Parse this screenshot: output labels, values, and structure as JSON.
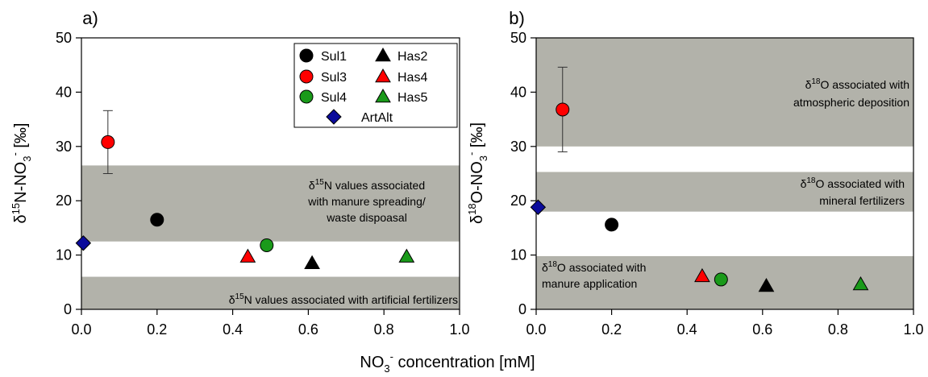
{
  "figure": {
    "shared_xlabel_main": "NO",
    "shared_xlabel_sub": "3",
    "shared_xlabel_sup": "-",
    "shared_xlabel_rest": " concentration [mM]"
  },
  "chart_data": [
    {
      "type": "scatter",
      "panel_label": "a)",
      "ylabel": {
        "delta": "δ",
        "sup1": "15",
        "mid": "N-NO",
        "sub": "3",
        "sup2": "-",
        "unit": " [‰]"
      },
      "xlim": [
        0,
        1.0
      ],
      "ylim": [
        0,
        50
      ],
      "xticks": [
        "0.0",
        "0.2",
        "0.4",
        "0.6",
        "0.8",
        "1.0"
      ],
      "yticks": [
        "0",
        "10",
        "20",
        "30",
        "40",
        "50"
      ],
      "bands": [
        {
          "y0": 12.5,
          "y1": 26.5,
          "label_lines": [
            {
              "delta": "δ",
              "sup": "15",
              "rest": "N values associated"
            },
            {
              "rest": "with manure spreading/"
            },
            {
              "rest": "waste dispoasal"
            }
          ]
        },
        {
          "y0": 0,
          "y1": 6,
          "label_lines": [
            {
              "delta": "δ",
              "sup": "15",
              "rest": "N values associated with artificial fertilizers"
            }
          ]
        }
      ],
      "series": [
        {
          "name": "Sul1",
          "marker": "circle",
          "color": "#000000",
          "points": [
            [
              0.2,
              16.5
            ]
          ]
        },
        {
          "name": "Sul3",
          "marker": "circle",
          "color": "#ff0000",
          "points": [
            [
              0.07,
              30.8
            ]
          ],
          "error": [
            [
              25.0,
              36.6
            ]
          ]
        },
        {
          "name": "Sul4",
          "marker": "circle",
          "color": "#1a9a1a",
          "points": [
            [
              0.49,
              11.8
            ]
          ]
        },
        {
          "name": "Has2",
          "marker": "triangle",
          "color": "#000000",
          "points": [
            [
              0.61,
              8.5
            ]
          ]
        },
        {
          "name": "Has4",
          "marker": "triangle",
          "color": "#ff0000",
          "points": [
            [
              0.44,
              9.7
            ]
          ]
        },
        {
          "name": "Has5",
          "marker": "triangle",
          "color": "#1a9a1a",
          "points": [
            [
              0.86,
              9.7
            ]
          ]
        },
        {
          "name": "ArtAlt",
          "marker": "diamond",
          "color": "#0b0b9b",
          "points": [
            [
              0.005,
              12.2
            ]
          ]
        }
      ],
      "legend": {
        "position": "top-right",
        "rows": [
          [
            "Sul1",
            "Has2"
          ],
          [
            "Sul3",
            "Has4"
          ],
          [
            "Sul4",
            "Has5"
          ],
          [
            "ArtAlt"
          ]
        ]
      }
    },
    {
      "type": "scatter",
      "panel_label": "b)",
      "ylabel": {
        "delta": "δ",
        "sup1": "18",
        "mid": "O-NO",
        "sub": "3",
        "sup2": "-",
        "unit": " [‰]"
      },
      "xlim": [
        0,
        1.0
      ],
      "ylim": [
        0,
        50
      ],
      "xticks": [
        "0.0",
        "0.2",
        "0.4",
        "0.6",
        "0.8",
        "1.0"
      ],
      "yticks": [
        "0",
        "10",
        "20",
        "30",
        "40",
        "50"
      ],
      "bands": [
        {
          "y0": 30,
          "y1": 50,
          "label_lines": [
            {
              "delta": "δ",
              "sup": "18",
              "rest": "O associated with"
            },
            {
              "rest": "atmospheric deposition"
            }
          ]
        },
        {
          "y0": 18,
          "y1": 25.3,
          "label_lines": [
            {
              "delta": "δ",
              "sup": "18",
              "rest": "O associated with"
            },
            {
              "rest": "mineral fertilizers"
            }
          ]
        },
        {
          "y0": 0,
          "y1": 9.8,
          "label_lines": [
            {
              "delta": "δ",
              "sup": "18",
              "rest": "O associated with"
            },
            {
              "rest": "manure application"
            }
          ]
        }
      ],
      "series": [
        {
          "name": "Sul1",
          "marker": "circle",
          "color": "#000000",
          "points": [
            [
              0.2,
              15.6
            ]
          ]
        },
        {
          "name": "Sul3",
          "marker": "circle",
          "color": "#ff0000",
          "points": [
            [
              0.07,
              36.8
            ]
          ],
          "error": [
            [
              29.0,
              44.6
            ]
          ]
        },
        {
          "name": "Sul4",
          "marker": "circle",
          "color": "#1a9a1a",
          "points": [
            [
              0.49,
              5.5
            ]
          ]
        },
        {
          "name": "Has2",
          "marker": "triangle",
          "color": "#000000",
          "points": [
            [
              0.61,
              4.3
            ]
          ]
        },
        {
          "name": "Has4",
          "marker": "triangle",
          "color": "#ff0000",
          "points": [
            [
              0.44,
              6.1
            ]
          ]
        },
        {
          "name": "Has5",
          "marker": "triangle",
          "color": "#1a9a1a",
          "points": [
            [
              0.86,
              4.6
            ]
          ]
        },
        {
          "name": "ArtAlt",
          "marker": "diamond",
          "color": "#0b0b9b",
          "points": [
            [
              0.005,
              18.8
            ]
          ]
        }
      ]
    }
  ]
}
